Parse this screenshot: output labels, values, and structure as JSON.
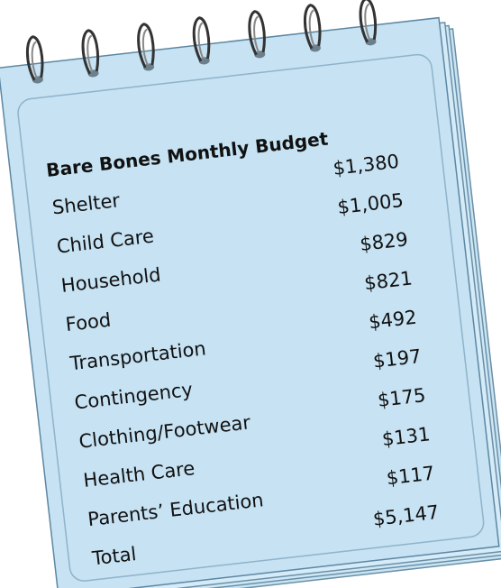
{
  "title": "Bare Bones Monthly Budget",
  "rows": [
    {
      "label": "Shelter",
      "amount": "$1,380"
    },
    {
      "label": "Child Care",
      "amount": "$1,005"
    },
    {
      "label": "Household",
      "amount": "$829"
    },
    {
      "label": "Food",
      "amount": "$821"
    },
    {
      "label": "Transportation",
      "amount": "$492"
    },
    {
      "label": "Contingency",
      "amount": "$197"
    },
    {
      "label": "Clothing/Footwear",
      "amount": "$175"
    },
    {
      "label": "Health Care",
      "amount": "$131"
    },
    {
      "label": "Parents’ Education",
      "amount": "$117"
    },
    {
      "label": "Total",
      "amount": "$5,147"
    }
  ]
}
